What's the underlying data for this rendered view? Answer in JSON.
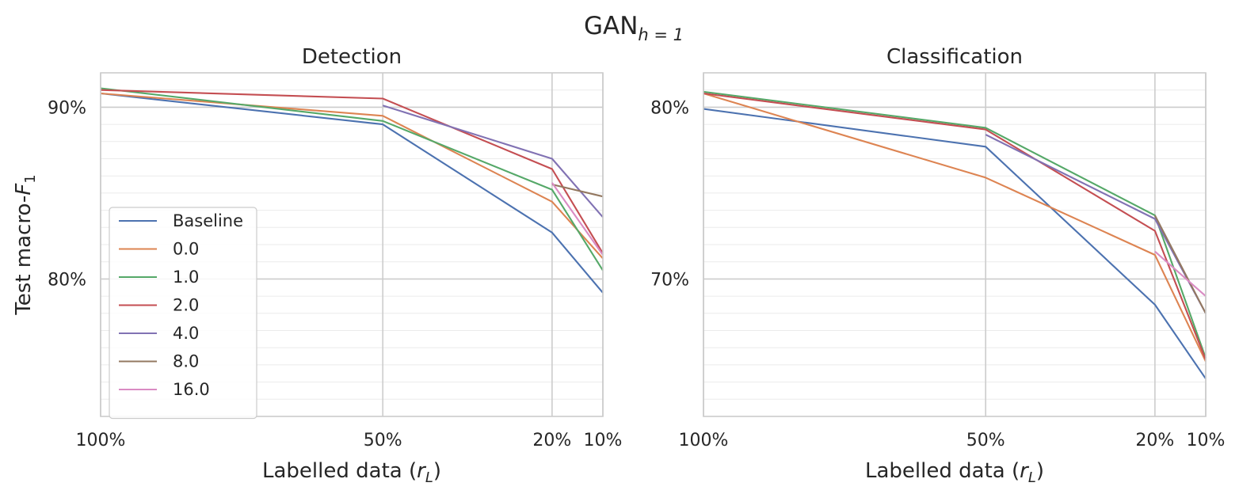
{
  "figure": {
    "suptitle_main": "GAN",
    "suptitle_sub": "h = 1"
  },
  "chart_data": [
    {
      "type": "line",
      "title": "Detection",
      "xlabel_main": "Labelled data (",
      "xlabel_var": "r",
      "xlabel_sub": "L",
      "xlabel_end": ")",
      "ylabel_main": "Test macro-",
      "ylabel_var": "F",
      "ylabel_sub": "1",
      "x_ticks": [
        "100%",
        "50%",
        "20%",
        "10%"
      ],
      "x_positions": [
        0,
        1,
        1.6,
        1.78
      ],
      "xlim": [
        0,
        1.78
      ],
      "y_ticks": [
        {
          "value": 80,
          "label": "80%"
        },
        {
          "value": 90,
          "label": "90%"
        }
      ],
      "ylim": [
        72,
        92
      ],
      "grid": true,
      "minor_grid": true,
      "legend": "lower-left",
      "series": [
        {
          "name": "Baseline",
          "color": "#4c72b0",
          "points": [
            [
              0,
              90.8
            ],
            [
              1,
              89.0
            ],
            [
              1.6,
              82.7
            ],
            [
              1.78,
              79.2
            ]
          ]
        },
        {
          "name": "0.0",
          "color": "#dd8452",
          "points": [
            [
              0,
              90.8
            ],
            [
              1,
              89.5
            ],
            [
              1.6,
              84.5
            ],
            [
              1.78,
              81.2
            ]
          ]
        },
        {
          "name": "1.0",
          "color": "#55a868",
          "points": [
            [
              0,
              91.1
            ],
            [
              1,
              89.2
            ],
            [
              1.6,
              85.2
            ],
            [
              1.78,
              80.5
            ]
          ]
        },
        {
          "name": "2.0",
          "color": "#c44e52",
          "points": [
            [
              0,
              91.0
            ],
            [
              1,
              90.5
            ],
            [
              1.6,
              86.4
            ],
            [
              1.78,
              81.5
            ]
          ]
        },
        {
          "name": "4.0",
          "color": "#8172b3",
          "points": [
            [
              1,
              90.1
            ],
            [
              1.6,
              87.0
            ],
            [
              1.78,
              83.6
            ]
          ]
        },
        {
          "name": "8.0",
          "color": "#937860",
          "points": [
            [
              1.6,
              85.5
            ],
            [
              1.78,
              84.8
            ]
          ]
        },
        {
          "name": "16.0",
          "color": "#da8bc3",
          "points": [
            [
              1.6,
              85.6
            ],
            [
              1.78,
              81.4
            ]
          ]
        }
      ]
    },
    {
      "type": "line",
      "title": "Classification",
      "xlabel_main": "Labelled data (",
      "xlabel_var": "r",
      "xlabel_sub": "L",
      "xlabel_end": ")",
      "x_ticks": [
        "100%",
        "50%",
        "20%",
        "10%"
      ],
      "x_positions": [
        0,
        1,
        1.6,
        1.78
      ],
      "xlim": [
        0,
        1.78
      ],
      "y_ticks": [
        {
          "value": 70,
          "label": "70%"
        },
        {
          "value": 80,
          "label": "80%"
        }
      ],
      "ylim": [
        62,
        82
      ],
      "grid": true,
      "minor_grid": true,
      "series": [
        {
          "name": "Baseline",
          "color": "#4c72b0",
          "points": [
            [
              0,
              79.9
            ],
            [
              1,
              77.7
            ],
            [
              1.6,
              68.5
            ],
            [
              1.78,
              64.2
            ]
          ]
        },
        {
          "name": "0.0",
          "color": "#dd8452",
          "points": [
            [
              0,
              80.8
            ],
            [
              1,
              75.9
            ],
            [
              1.6,
              71.4
            ],
            [
              1.78,
              65.2
            ]
          ]
        },
        {
          "name": "1.0",
          "color": "#55a868",
          "points": [
            [
              0,
              80.9
            ],
            [
              1,
              78.8
            ],
            [
              1.6,
              73.7
            ],
            [
              1.78,
              65.4
            ]
          ]
        },
        {
          "name": "2.0",
          "color": "#c44e52",
          "points": [
            [
              0,
              80.8
            ],
            [
              1,
              78.7
            ],
            [
              1.6,
              72.8
            ],
            [
              1.78,
              65.3
            ]
          ]
        },
        {
          "name": "4.0",
          "color": "#8172b3",
          "points": [
            [
              1,
              78.4
            ],
            [
              1.6,
              73.5
            ],
            [
              1.78,
              68.0
            ]
          ]
        },
        {
          "name": "8.0",
          "color": "#937860",
          "points": [
            [
              1.6,
              73.7
            ],
            [
              1.78,
              68.0
            ]
          ]
        },
        {
          "name": "16.0",
          "color": "#da8bc3",
          "points": [
            [
              1.6,
              71.6
            ],
            [
              1.78,
              69.0
            ]
          ]
        }
      ]
    }
  ]
}
